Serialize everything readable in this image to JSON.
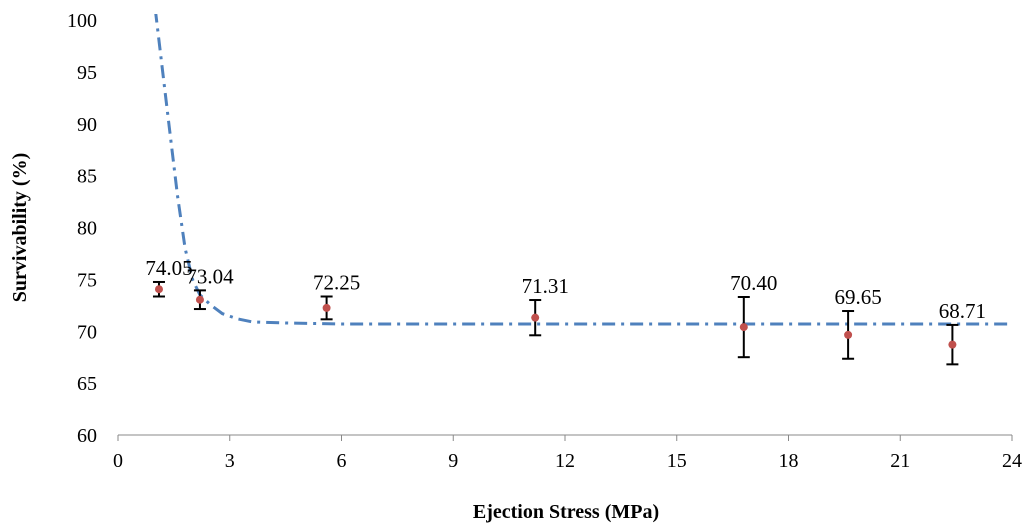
{
  "chart_data": {
    "type": "scatter",
    "xlabel": "Ejection Stress (MPa)",
    "ylabel": "Survivability (%)",
    "xlim": [
      0,
      24
    ],
    "ylim": [
      60,
      100
    ],
    "x_ticks": [
      0,
      3,
      6,
      9,
      12,
      15,
      18,
      21,
      24
    ],
    "y_ticks": [
      60,
      65,
      70,
      75,
      80,
      85,
      90,
      95,
      100
    ],
    "grid": false,
    "legend": "none",
    "series": [
      {
        "x": [
          1.1,
          2.2,
          5.6,
          11.2,
          16.8,
          19.6,
          22.4
        ],
        "y": [
          74.05,
          73.04,
          72.25,
          71.31,
          70.4,
          69.65,
          68.71
        ],
        "labels": [
          "74.05",
          "73.04",
          "72.25",
          "71.31",
          "70.40",
          "69.65",
          "68.71"
        ],
        "error_low": [
          0.7,
          0.9,
          1.1,
          1.7,
          2.9,
          2.3,
          1.9
        ],
        "error_high": [
          0.7,
          0.9,
          1.1,
          1.7,
          2.9,
          2.3,
          1.9
        ],
        "marker_color": "#c0504d"
      }
    ],
    "trendline": {
      "style": "dash-dot",
      "color": "#4f81bd",
      "x": [
        1.0,
        1.2,
        1.4,
        1.6,
        1.8,
        2.0,
        2.2,
        2.5,
        2.8,
        3.2,
        3.6,
        4.5,
        6,
        8,
        12,
        16,
        20,
        24
      ],
      "y": [
        101,
        95,
        89,
        83,
        78,
        75,
        73.5,
        72.5,
        71.7,
        71.2,
        70.9,
        70.8,
        70.7,
        70.7,
        70.7,
        70.7,
        70.7,
        70.7
      ]
    }
  }
}
